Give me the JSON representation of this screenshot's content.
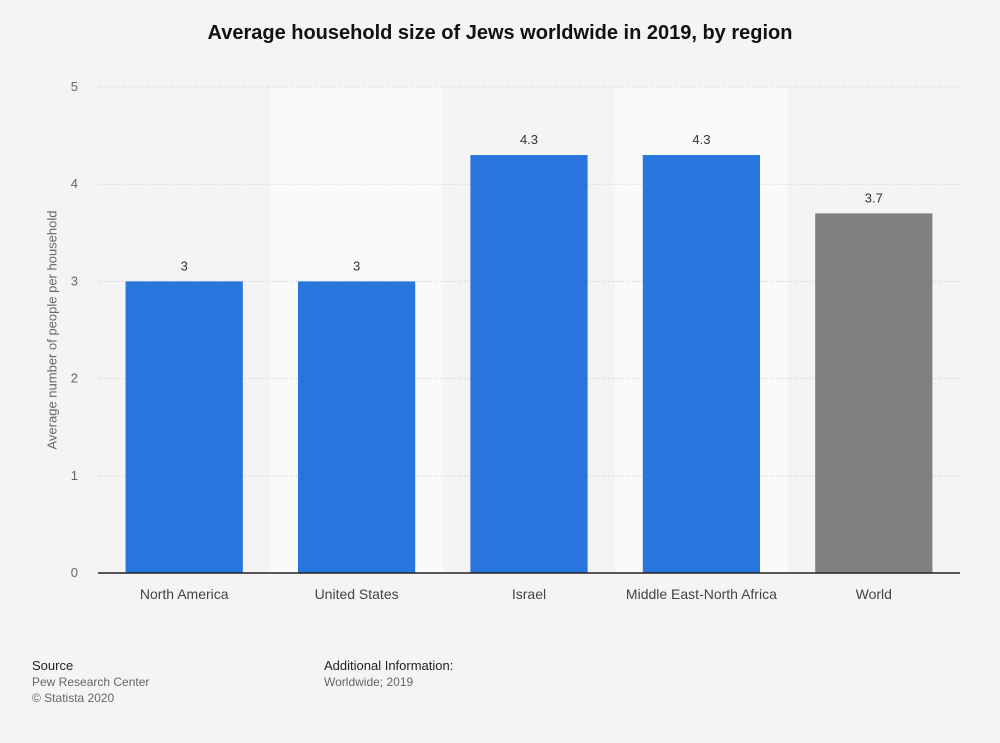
{
  "chart_data": {
    "type": "bar",
    "title": "Average household size of Jews worldwide in 2019, by region",
    "xlabel": "",
    "ylabel": "Average number of people per household",
    "categories": [
      "North America",
      "United States",
      "Israel",
      "Middle East-North Africa",
      "World"
    ],
    "values": [
      3,
      3,
      4.3,
      4.3,
      3.7
    ],
    "value_labels": [
      "3",
      "3",
      "4.3",
      "4.3",
      "3.7"
    ],
    "bar_colors": [
      "#2876dd",
      "#2876dd",
      "#2876dd",
      "#2876dd",
      "#808080"
    ],
    "ylim": [
      0,
      5
    ],
    "yticks": [
      0,
      1,
      2,
      3,
      4,
      5
    ],
    "grid": true,
    "legend": "none"
  },
  "footer": {
    "source_heading": "Source",
    "source_line1": "Pew Research Center",
    "source_line2": "© Statista 2020",
    "info_heading": "Additional Information:",
    "info_line1": "Worldwide; 2019"
  }
}
